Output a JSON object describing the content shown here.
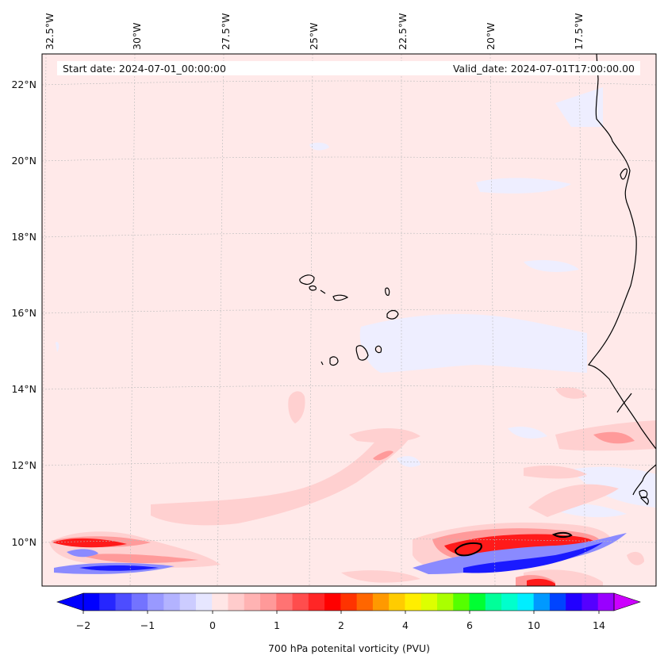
{
  "header": {
    "start_date": "Start date: 2024-07-01_00:00:00",
    "valid_date": "Valid_date: 2024-07-01T17:00:00.00"
  },
  "map": {
    "lon_labels": [
      "32.5°W",
      "30°W",
      "27.5°W",
      "25°W",
      "22.5°W",
      "20°W",
      "17.5°W"
    ],
    "lat_labels": [
      "22°N",
      "20°N",
      "18°N",
      "16°N",
      "14°N",
      "12°N",
      "10°N"
    ],
    "gridlines": true,
    "colors": {
      "background": "#ffe9e9",
      "light_blue": "#eeeeff",
      "light_red": "#ffd0d0",
      "mid_red": "#ff8a8a",
      "red": "#ff2020",
      "mid_blue": "#7070ff",
      "blue": "#1010ff"
    }
  },
  "colorbar": {
    "tick_labels": [
      "−2",
      "−1",
      "0",
      "1",
      "2",
      "4",
      "6",
      "10",
      "14"
    ],
    "label": "700 hPa potenital vorticity (PVU)",
    "colors": [
      "#0000ff",
      "#2626ff",
      "#4d4dff",
      "#7373ff",
      "#9999ff",
      "#b3b3ff",
      "#ccccff",
      "#e6e6ff",
      "#ffe6e6",
      "#ffcccc",
      "#ffb3b3",
      "#ff9999",
      "#ff7373",
      "#ff4d4d",
      "#ff2626",
      "#ff0000",
      "#ff3300",
      "#ff6600",
      "#ff9900",
      "#ffcc00",
      "#ffee00",
      "#ddff00",
      "#aaff00",
      "#55ff00",
      "#00ff33",
      "#00ff99",
      "#00ffcc",
      "#00eeff",
      "#0099ff",
      "#0044ff",
      "#2200ff",
      "#5500ff",
      "#9900ff"
    ],
    "extend_min_color": "#0000ff",
    "extend_max_color": "#cc00ff"
  }
}
